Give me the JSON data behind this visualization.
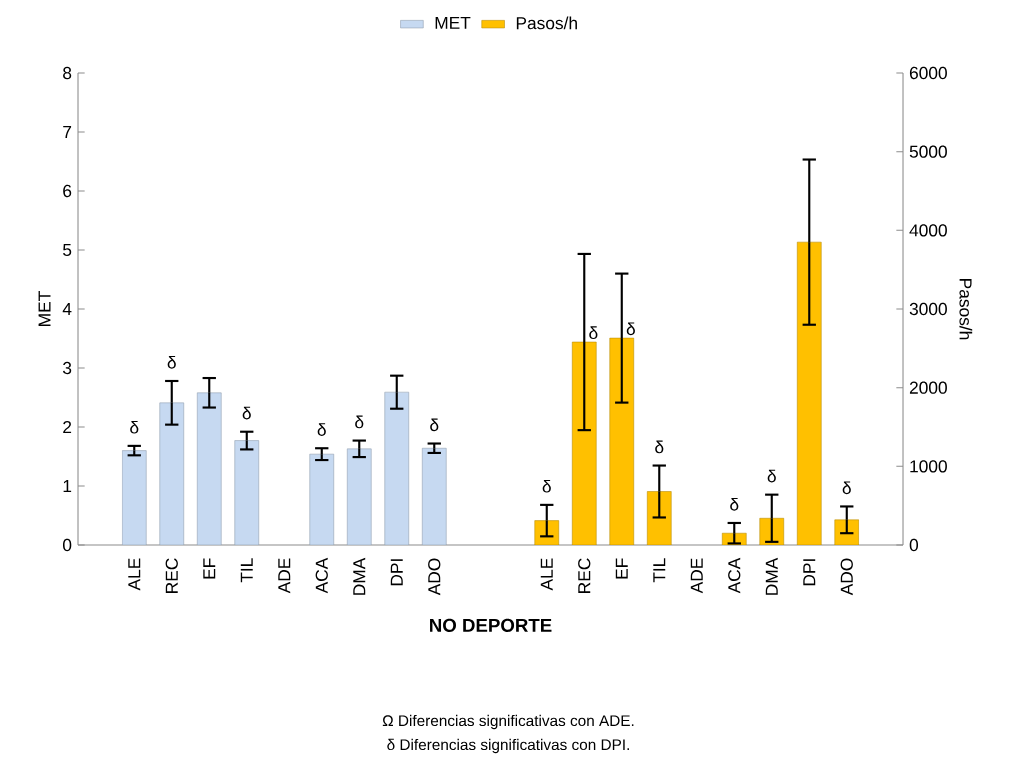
{
  "chart_data": {
    "type": "bar",
    "xlabel": "NO DEPORTE",
    "ylabel": "MET",
    "y2label": "Pasos/h",
    "categories": [
      "ALE",
      "REC",
      "EF",
      "TIL",
      "ADE",
      "ACA",
      "DMA",
      "DPI",
      "ADO",
      null,
      null,
      "ALE",
      "REC",
      "EF",
      "TIL",
      "ADE",
      "ACA",
      "DMA",
      "DPI",
      "ADO"
    ],
    "series": [
      {
        "name": "MET",
        "color": "#c6d9f1",
        "values": [
          1.6,
          2.41,
          2.58,
          1.77,
          null,
          1.54,
          1.63,
          2.59,
          1.64,
          null,
          null,
          null,
          null,
          null,
          null,
          null,
          null,
          null,
          null,
          null
        ],
        "errors": [
          0.08,
          0.37,
          0.25,
          0.15,
          null,
          0.1,
          0.14,
          0.28,
          0.08,
          null,
          null,
          null,
          null,
          null,
          null,
          null,
          null,
          null,
          null,
          null
        ],
        "value_labels": [
          "δ",
          "δ",
          null,
          "δ",
          null,
          "δ",
          "δ",
          null,
          "δ",
          null,
          null,
          null,
          null,
          null,
          null,
          null,
          null,
          null,
          null,
          null
        ]
      },
      {
        "name": "Pasos/h",
        "color": "#ffc000",
        "axis": "y2",
        "values": [
          null,
          null,
          null,
          null,
          null,
          null,
          null,
          null,
          null,
          null,
          null,
          310,
          2580,
          2630,
          680,
          null,
          150,
          340,
          3850,
          320
        ],
        "errors": [
          null,
          null,
          null,
          null,
          null,
          null,
          null,
          null,
          null,
          null,
          null,
          200,
          1120,
          820,
          330,
          null,
          130,
          300,
          1050,
          170
        ],
        "value_labels": [
          null,
          null,
          null,
          null,
          null,
          null,
          null,
          null,
          null,
          null,
          null,
          "δ",
          "δ",
          "δ",
          "δ",
          null,
          "δ",
          "δ",
          null,
          "δ"
        ]
      }
    ],
    "ylim": [
      0,
      8
    ],
    "yticks": [
      0,
      1,
      2,
      3,
      4,
      5,
      6,
      7,
      8
    ],
    "y2lim": [
      0,
      6000
    ],
    "y2ticks": [
      0,
      1000,
      2000,
      3000,
      4000,
      5000,
      6000
    ],
    "grid": false,
    "legend": "top",
    "annotations": [
      "Ω  Diferencias significativas con ADE.",
      "δ  Diferencias significativas con DPI."
    ]
  }
}
